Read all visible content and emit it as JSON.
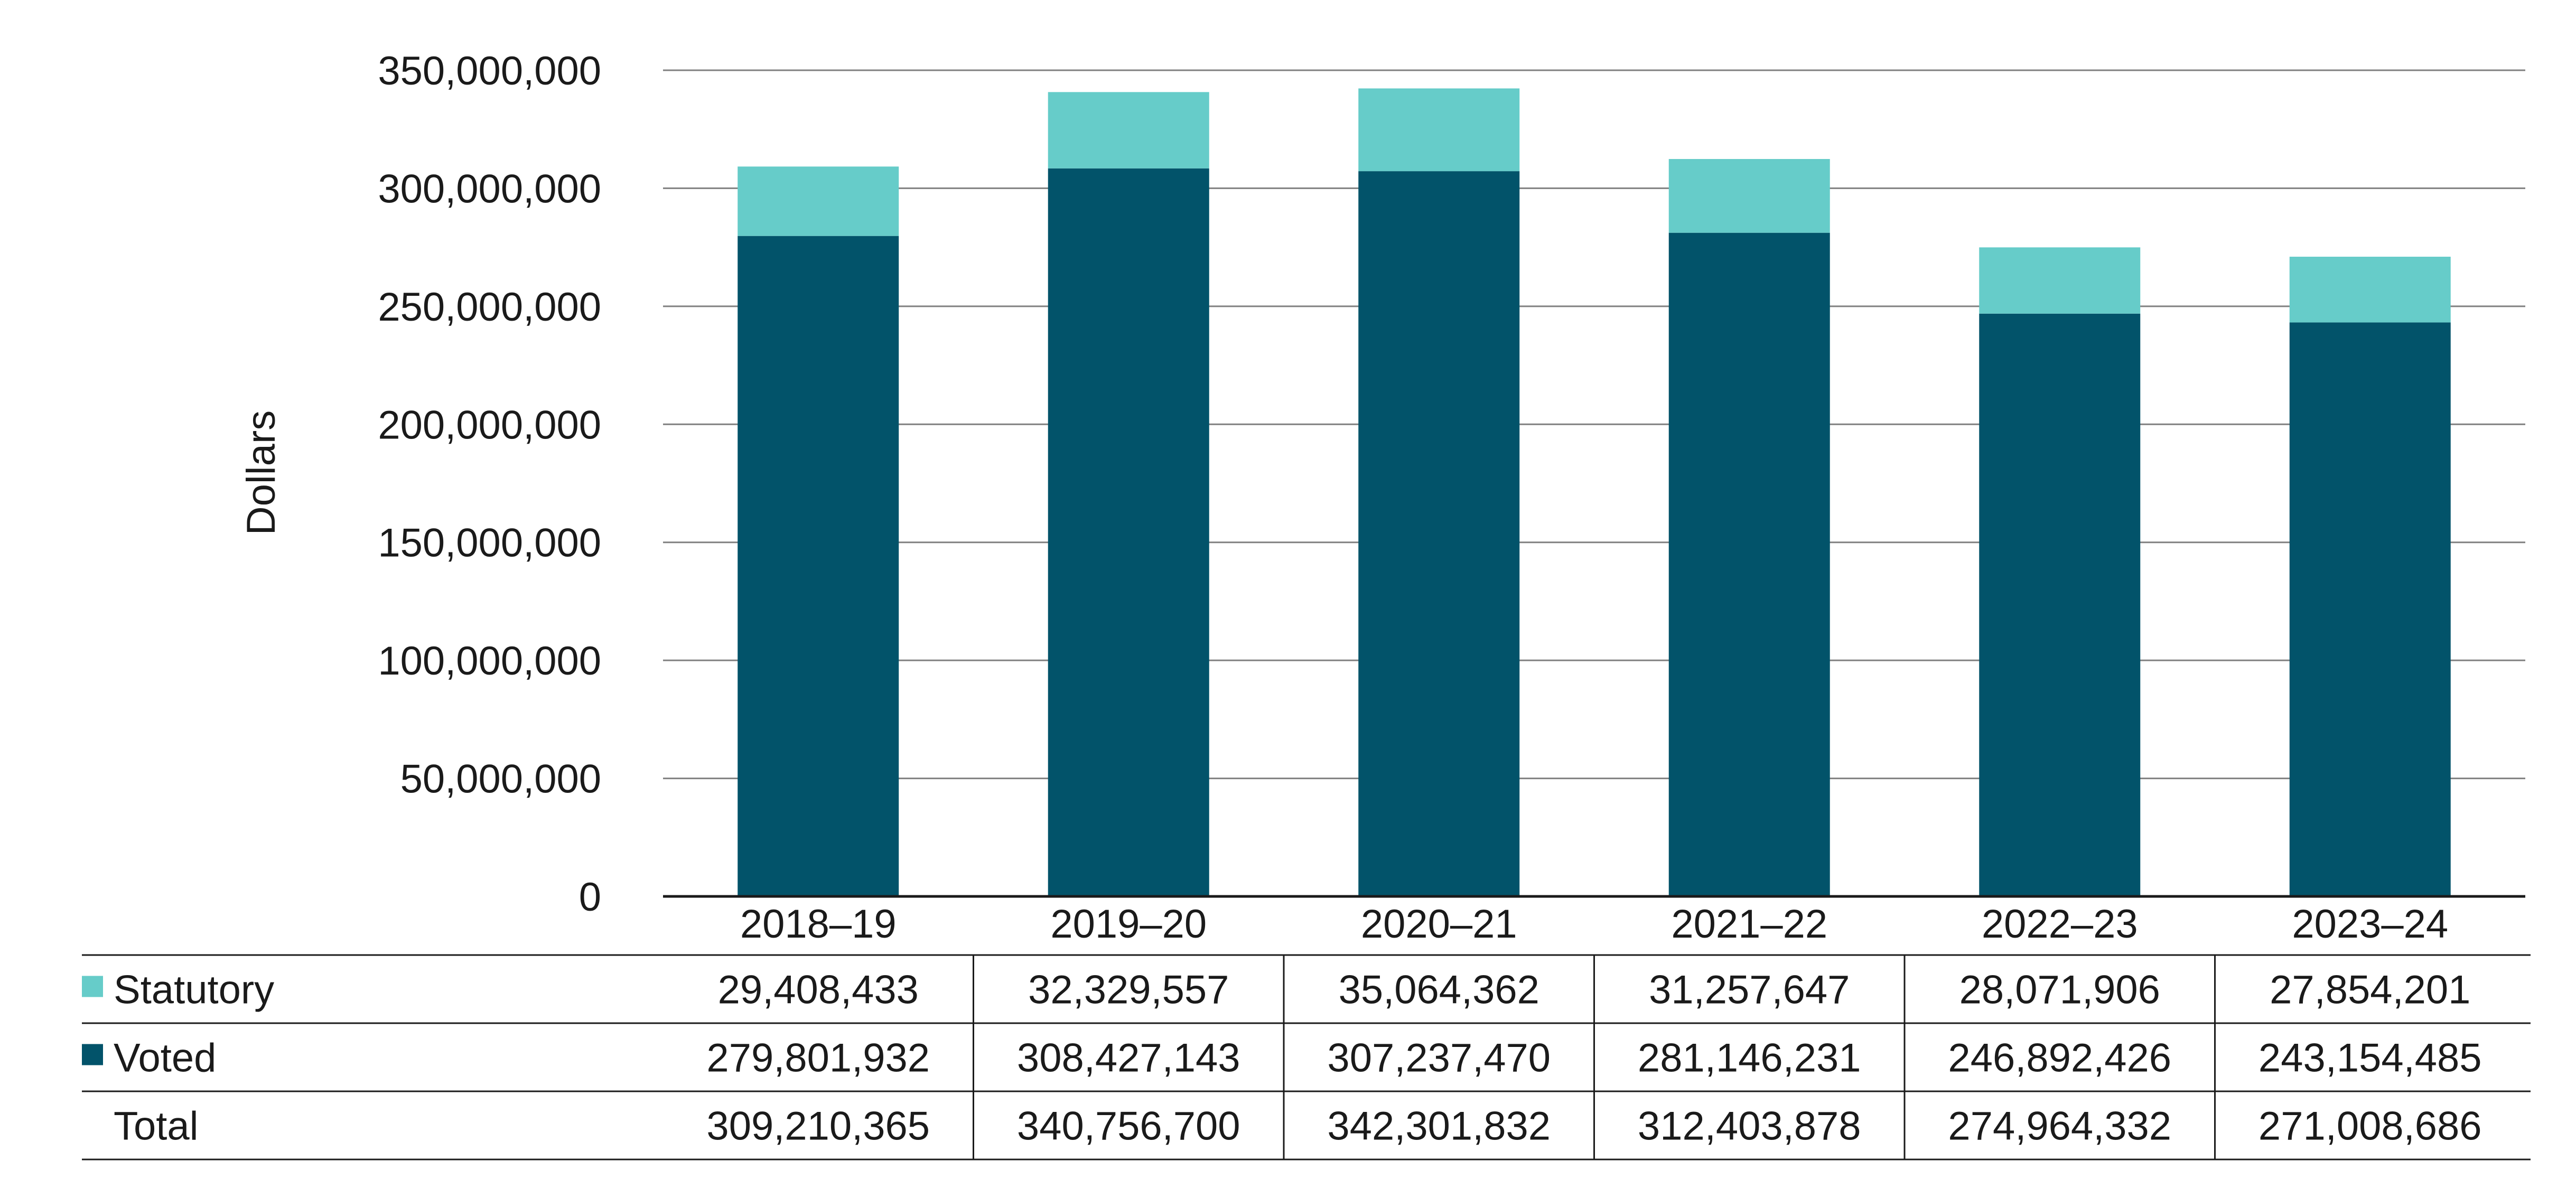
{
  "chart_data": {
    "type": "bar",
    "stacked": true,
    "categories": [
      "2018–19",
      "2019–20",
      "2020–21",
      "2021–22",
      "2022–23",
      "2023–24"
    ],
    "series": [
      {
        "name": "Voted",
        "color": "#02536a",
        "values": [
          279801932,
          308427143,
          307237470,
          281146231,
          246892426,
          243154485
        ],
        "labels": [
          "279,801,932",
          "308,427,143",
          "307,237,470",
          "281,146,231",
          "246,892,426",
          "243,154,485"
        ]
      },
      {
        "name": "Statutory",
        "color": "#66ccc9",
        "values": [
          29408433,
          32329557,
          35064362,
          31257647,
          28071906,
          27854201
        ],
        "labels": [
          "29,408,433",
          "32,329,557",
          "35,064,362",
          "31,257,647",
          "28,071,906",
          "27,854,201"
        ]
      }
    ],
    "totals": {
      "name": "Total",
      "values": [
        309210365,
        340756700,
        342301832,
        312403878,
        274964332,
        271008686
      ],
      "labels": [
        "309,210,365",
        "340,756,700",
        "342,301,832",
        "312,403,878",
        "274,964,332",
        "271,008,686"
      ]
    },
    "title": "",
    "xlabel": "",
    "ylabel": "Dollars",
    "ylim": [
      0,
      350000000
    ],
    "yticks": [
      0,
      50000000,
      100000000,
      150000000,
      200000000,
      250000000,
      300000000,
      350000000
    ],
    "ytick_labels": [
      "0",
      "50,000,000",
      "100,000,000",
      "150,000,000",
      "200,000,000",
      "250,000,000",
      "300,000,000",
      "350,000,000"
    ],
    "grid": true,
    "legend": "table-rows-left",
    "gridline_color": "#808080",
    "axis_color": "#1a1a1a"
  }
}
